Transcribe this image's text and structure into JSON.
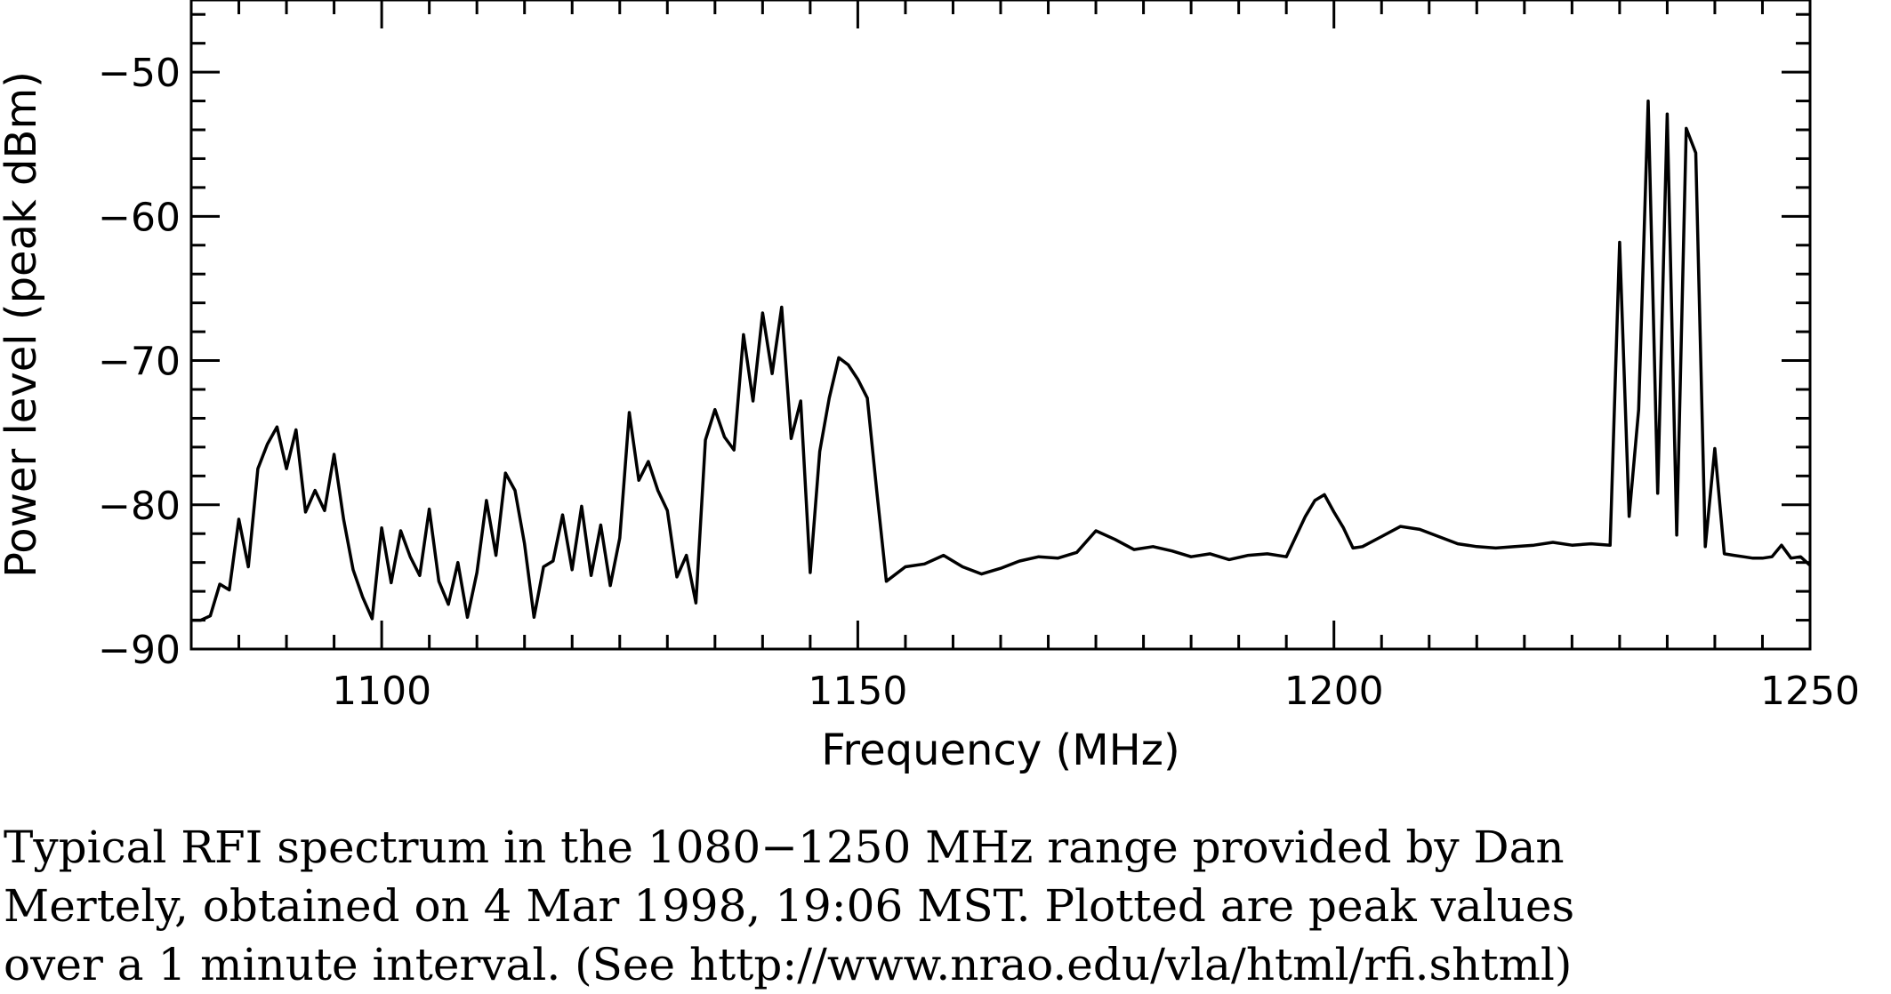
{
  "chart_data": {
    "type": "line",
    "title": "",
    "xlabel": "Frequency (MHz)",
    "ylabel": "Power level (peak dBm)",
    "xlim": [
      1080,
      1250
    ],
    "ylim": [
      -90,
      -45
    ],
    "x_ticks": [
      1100,
      1150,
      1200,
      1250
    ],
    "x_tick_labels": [
      "1100",
      "1150",
      "1200",
      "1250"
    ],
    "y_ticks": [
      -90,
      -80,
      -70,
      -60,
      -50
    ],
    "y_tick_labels": [
      "−90",
      "−80",
      "−70",
      "−60",
      "−50"
    ],
    "grid": false,
    "legend": "none",
    "line_color": "#000000",
    "series": [
      {
        "x": [
          1080,
          1081,
          1082,
          1083,
          1084,
          1085,
          1086,
          1087,
          1088,
          1089,
          1090,
          1091,
          1092,
          1093,
          1094,
          1095,
          1096,
          1097,
          1098,
          1099,
          1100,
          1101,
          1102,
          1103,
          1104,
          1105,
          1106,
          1107,
          1108,
          1109,
          1110,
          1111,
          1112,
          1113,
          1114,
          1115,
          1116,
          1117,
          1118,
          1119,
          1120,
          1121,
          1122,
          1123,
          1124,
          1125,
          1126,
          1127,
          1128,
          1129,
          1130,
          1131,
          1132,
          1133,
          1134,
          1135,
          1136,
          1137,
          1138,
          1139,
          1140,
          1141,
          1142,
          1143,
          1144,
          1145,
          1146,
          1147,
          1148,
          1149,
          1150,
          1151,
          1152,
          1153,
          1155,
          1157,
          1159,
          1161,
          1163,
          1165,
          1167,
          1169,
          1171,
          1173,
          1175,
          1177,
          1179,
          1181,
          1183,
          1185,
          1187,
          1189,
          1191,
          1193,
          1195,
          1197,
          1198,
          1199,
          1200,
          1201,
          1202,
          1203,
          1205,
          1207,
          1209,
          1211,
          1213,
          1215,
          1217,
          1219,
          1221,
          1223,
          1225,
          1227,
          1229,
          1230,
          1231,
          1232,
          1233,
          1234,
          1235,
          1236,
          1237,
          1238,
          1239,
          1240,
          1241,
          1242,
          1243,
          1244,
          1245,
          1246,
          1247,
          1248,
          1249,
          1250
        ],
        "y": [
          -88,
          -88,
          -87.7,
          -85.5,
          -85.9,
          -81,
          -84.3,
          -77.5,
          -75.8,
          -74.6,
          -77.5,
          -74.8,
          -80.5,
          -79,
          -80.4,
          -76.5,
          -81,
          -84.5,
          -86.4,
          -87.9,
          -81.6,
          -85.4,
          -81.8,
          -83.6,
          -84.9,
          -80.3,
          -85.3,
          -86.9,
          -84,
          -87.8,
          -84.7,
          -79.7,
          -83.5,
          -77.8,
          -79,
          -82.7,
          -87.8,
          -84.3,
          -83.9,
          -80.7,
          -84.5,
          -80.1,
          -84.9,
          -81.4,
          -85.6,
          -82.3,
          -73.6,
          -78.3,
          -77,
          -79,
          -80.4,
          -85,
          -83.5,
          -86.8,
          -75.5,
          -73.4,
          -75.3,
          -76.2,
          -68.2,
          -72.8,
          -66.7,
          -70.9,
          -66.3,
          -75.4,
          -72.8,
          -84.7,
          -76.3,
          -72.6,
          -69.8,
          -70.3,
          -71.3,
          -72.6,
          -79.1,
          -85.3,
          -84.3,
          -84.1,
          -83.5,
          -84.3,
          -84.8,
          -84.4,
          -83.9,
          -83.6,
          -83.7,
          -83.3,
          -81.8,
          -82.4,
          -83.1,
          -82.9,
          -83.2,
          -83.6,
          -83.4,
          -83.8,
          -83.5,
          -83.4,
          -83.6,
          -80.8,
          -79.7,
          -79.3,
          -80.5,
          -81.6,
          -83,
          -82.9,
          -82.2,
          -81.5,
          -81.7,
          -82.2,
          -82.7,
          -82.9,
          -83,
          -82.9,
          -82.8,
          -82.6,
          -82.8,
          -82.7,
          -82.8,
          -61.8,
          -80.8,
          -73.4,
          -52,
          -79.2,
          -52.9,
          -82.1,
          -53.9,
          -55.6,
          -82.9,
          -76.1,
          -83.4,
          -83.5,
          -83.6,
          -83.7,
          -83.7,
          -83.6,
          -82.8,
          -83.7,
          -83.6,
          -84.2
        ]
      }
    ]
  },
  "caption": "Typical RFI spectrum in the 1080−1250 MHz range provided by Dan\nMertely, obtained on 4 Mar 1998, 19:06 MST. Plotted are peak values\nover a 1 minute interval. (See http://www.nrao.edu/vla/html/rfi.shtml)"
}
